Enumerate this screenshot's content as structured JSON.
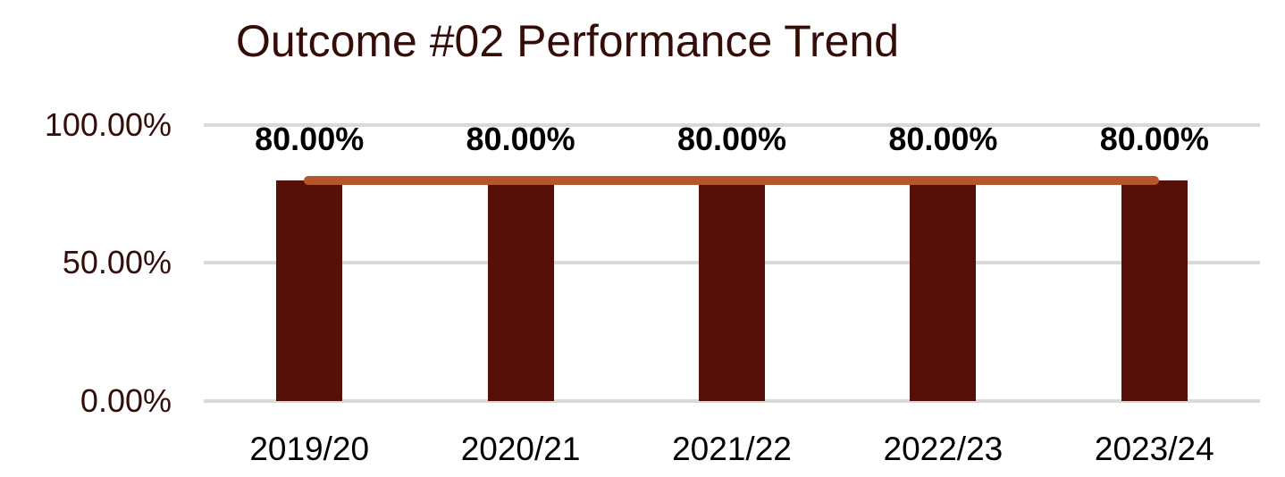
{
  "chart_data": {
    "type": "bar",
    "title": "Outcome #02 Performance Trend",
    "categories": [
      "2019/20",
      "2020/21",
      "2021/22",
      "2022/23",
      "2023/24"
    ],
    "series": [
      {
        "name": "performance-bars",
        "type": "bar",
        "values": [
          80,
          80,
          80,
          80,
          80
        ],
        "color": "#571008"
      },
      {
        "name": "trend-line",
        "type": "line",
        "values": [
          80,
          80,
          80,
          80,
          80
        ],
        "color": "#B5572A"
      }
    ],
    "data_labels": [
      "80.00%",
      "80.00%",
      "80.00%",
      "80.00%",
      "80.00%"
    ],
    "xlabel": "",
    "ylabel": "",
    "ylim": [
      0,
      100
    ],
    "y_axis": {
      "ticks": [
        "100.00%",
        "50.00%",
        "0.00%"
      ],
      "tick_values": [
        100,
        50,
        0
      ],
      "tick_color": "#350D08"
    },
    "x_axis": {
      "tick_color": "#000000"
    },
    "grid": true,
    "gridline_color": "#D9D9D9",
    "legend": false,
    "title_color": "#350D08",
    "data_label_color": "#000000",
    "background_color": "#FFFFFF"
  }
}
